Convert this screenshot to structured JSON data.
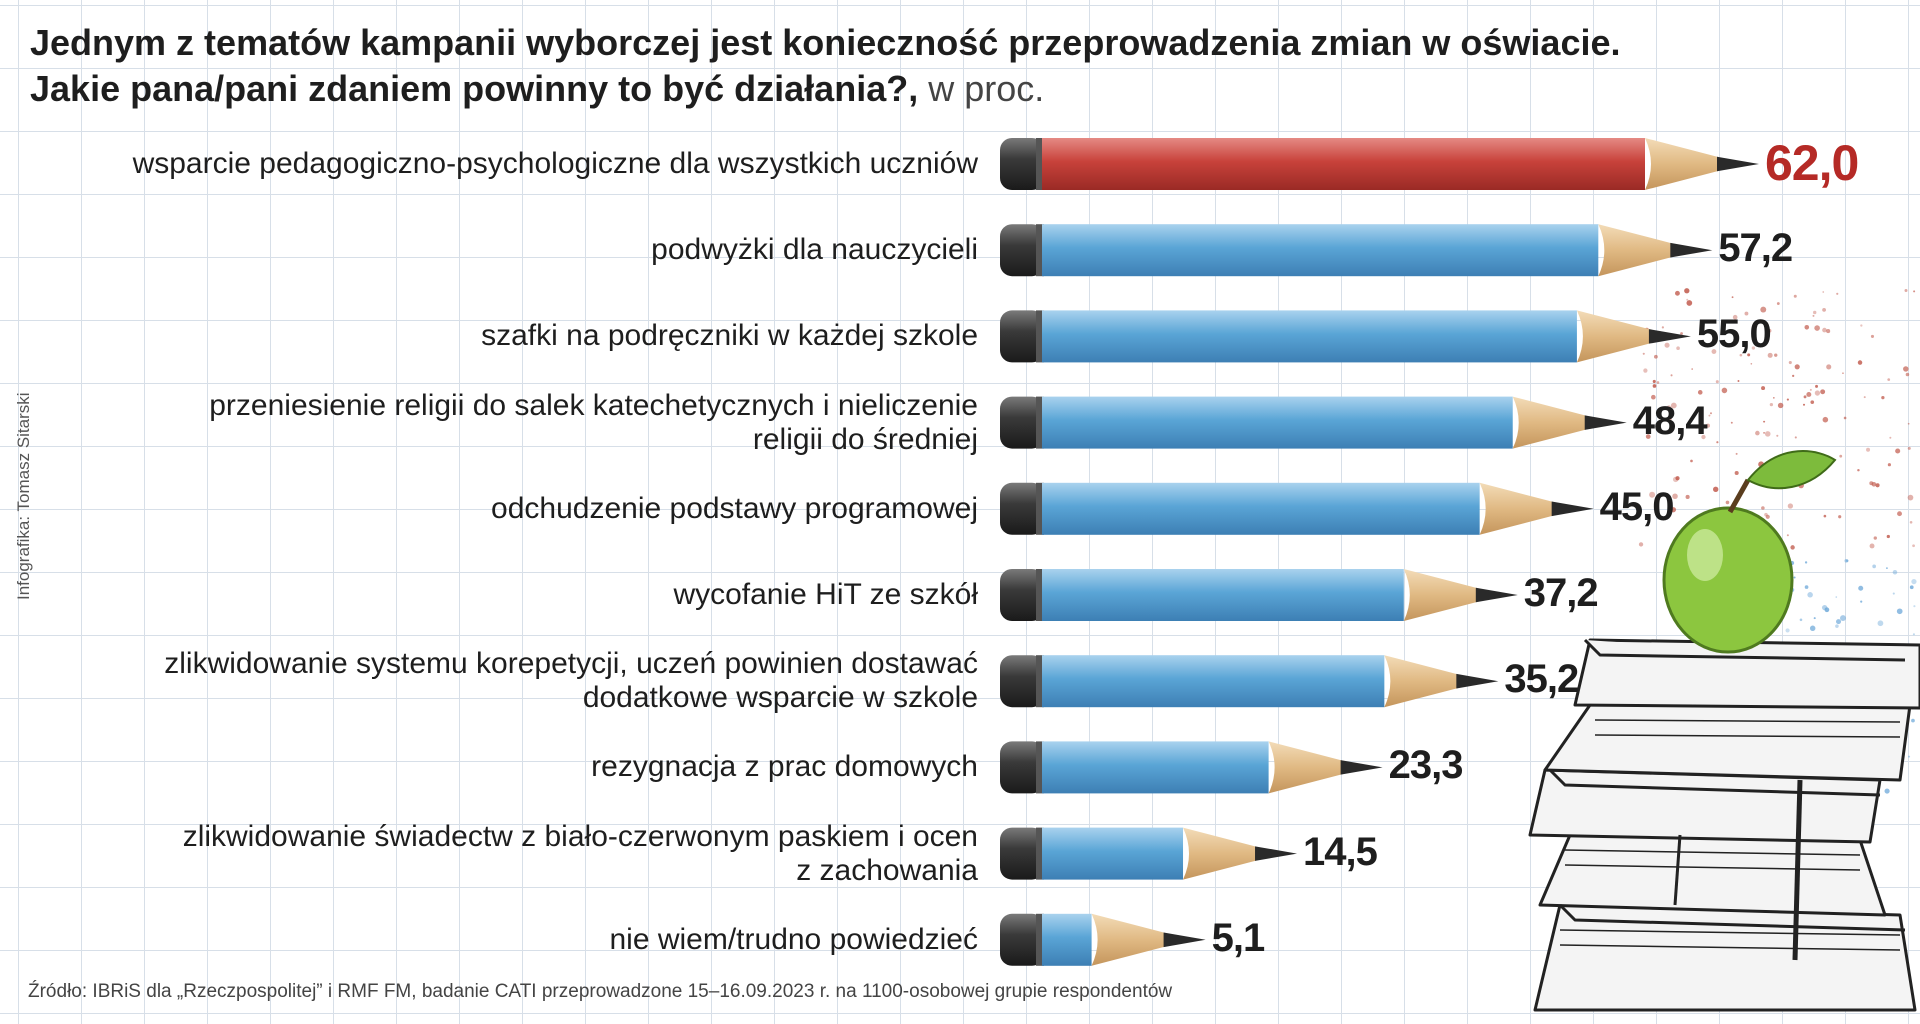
{
  "title": {
    "line1": "Jednym z tematów kampanii wyborczej jest konieczność przeprowadzenia zmian w oświacie.",
    "line2": "Jakie pana/pani zdaniem powinny to być działania?,",
    "unit": " w proc."
  },
  "credit": "Infografika: Tomasz Sitarski",
  "source": "Źródło: IBRiS dla „Rzeczpospolitej” i RMF FM, badanie CATI przeprowadzone 15–16.09.2023 r. na 1100-osobowej grupie respondentów",
  "colors": {
    "highlight": "#c8423b",
    "bar": "#5aa5d6",
    "value_highlight": "#b52a26"
  },
  "chart_data": {
    "type": "bar",
    "orientation": "horizontal",
    "title": "Jednym z tematów kampanii wyborczej jest konieczność przeprowadzenia zmian w oświacie. Jakie pana/pani zdaniem powinny to być działania?, w proc.",
    "categories": [
      "wsparcie pedagogiczno-psychologiczne dla wszystkich uczniów",
      "podwyżki dla nauczycieli",
      "szafki na podręczniki w każdej szkole",
      "przeniesienie religii do salek katechetycznych i nieliczenie religii do średniej",
      "odchudzenie podstawy programowej",
      "wycofanie HiT ze szkół",
      "zlikwidowanie systemu korepetycji, uczeń powinien dostawać dodatkowe wsparcie w szkole",
      "rezygnacja z prac domowych",
      "zlikwidowanie świadectw z biało-czerwonym paskiem i ocen z zachowania",
      "nie wiem/trudno powiedzieć"
    ],
    "label_lines": [
      [
        "wsparcie pedagogiczno-psychologiczne dla wszystkich uczniów"
      ],
      [
        "podwyżki dla nauczycieli"
      ],
      [
        "szafki na podręczniki w każdej szkole"
      ],
      [
        "przeniesienie religii do salek katechetycznych i nieliczenie",
        "religii do średniej"
      ],
      [
        "odchudzenie podstawy programowej"
      ],
      [
        "wycofanie HiT ze szkół"
      ],
      [
        "zlikwidowanie systemu korepetycji, uczeń powinien dostawać",
        "dodatkowe wsparcie w szkole"
      ],
      [
        "rezygnacja z prac domowych"
      ],
      [
        "zlikwidowanie świadectw z biało-czerwonym paskiem i ocen",
        "z zachowania"
      ],
      [
        "nie wiem/trudno powiedzieć"
      ]
    ],
    "values": [
      62.0,
      57.2,
      55.0,
      48.4,
      45.0,
      37.2,
      35.2,
      23.3,
      14.5,
      5.1
    ],
    "value_labels": [
      "62,0",
      "57,2",
      "55,0",
      "48,4",
      "45,0",
      "37,2",
      "35,2",
      "23,3",
      "14,5",
      "5,1"
    ],
    "highlight_index": 0,
    "xlim": [
      0,
      62
    ],
    "unit": "w proc."
  }
}
